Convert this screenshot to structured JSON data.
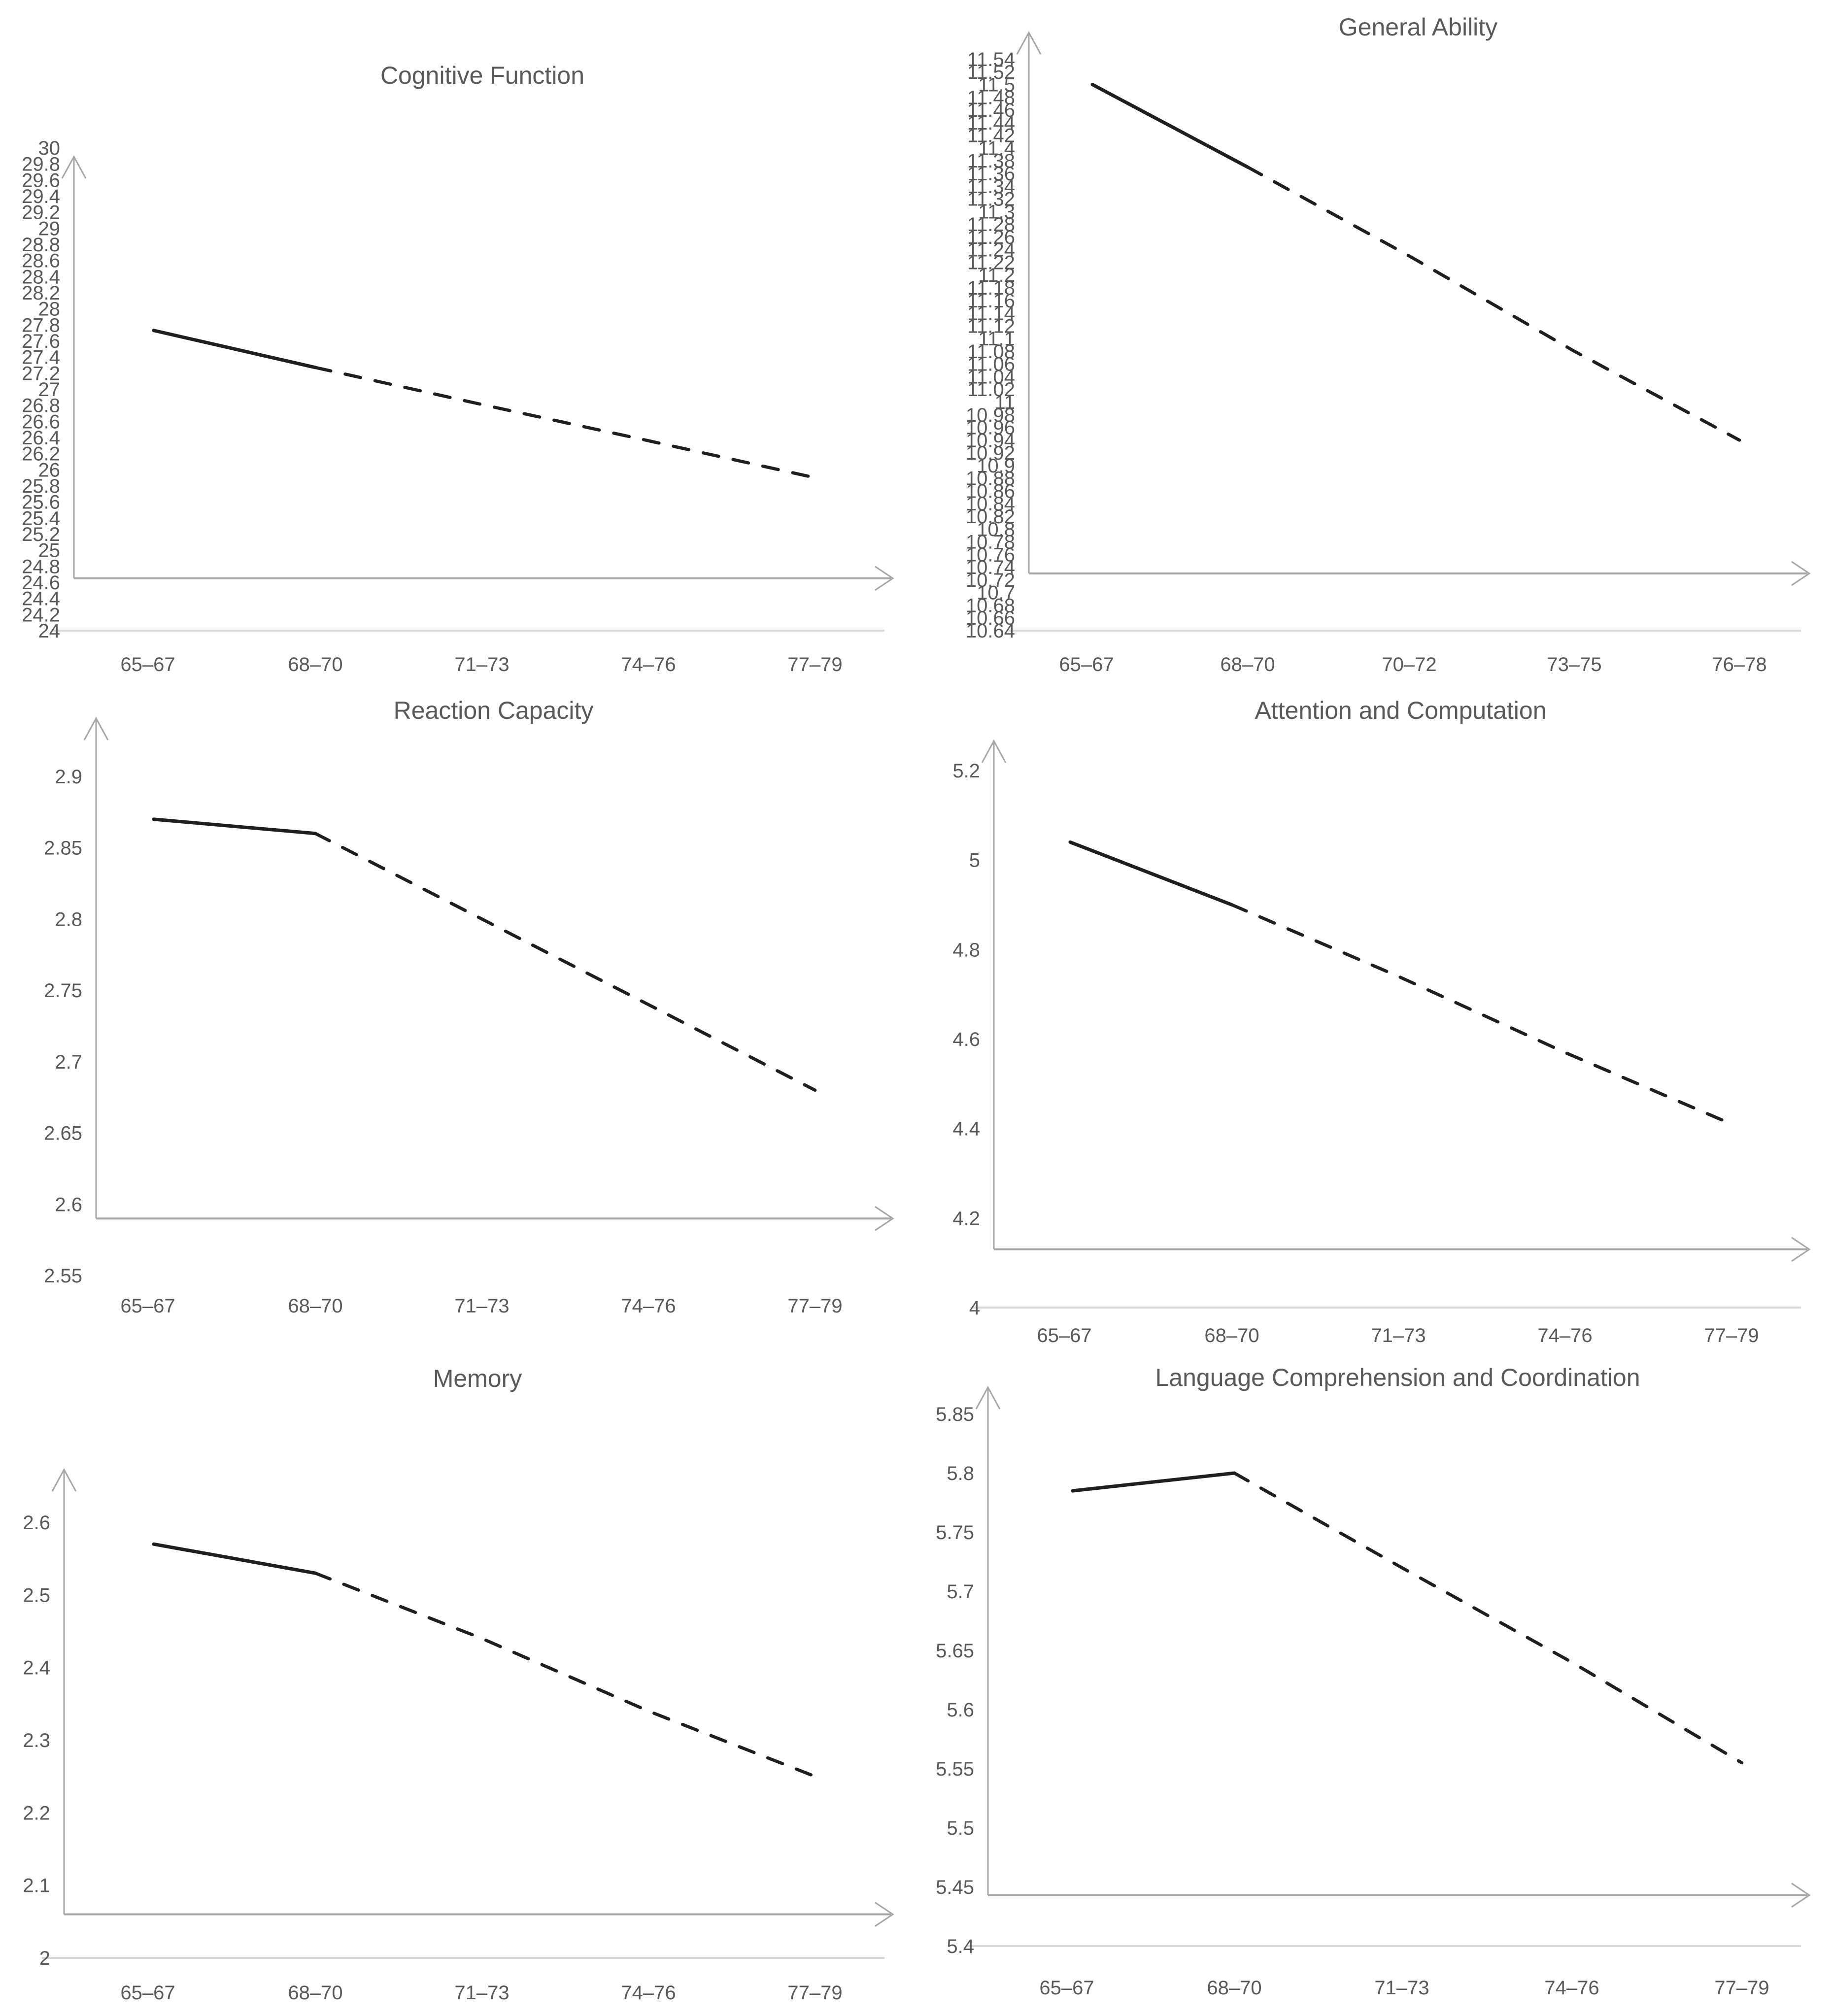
{
  "page": {
    "background": "#ffffff"
  },
  "colors": {
    "data_line": "#1f1f1f",
    "axis_line": "#a6a6a6",
    "label_text": "#595959",
    "faint_gridline": "#d9d9d9"
  },
  "chart_data": [
    {
      "type": "line",
      "title": "Cognitive Function",
      "categories": [
        "65–67",
        "68–70",
        "71–73",
        "74–76",
        "77–79"
      ],
      "values": [
        27.73,
        27.27,
        26.81,
        26.36,
        25.9
      ],
      "solid_until_index": 1,
      "dashed_after": true,
      "xlabel": "",
      "ylabel": "",
      "ylim": [
        24,
        30
      ],
      "y_max": 30,
      "y_min": 24,
      "axis_cross_value": 24.65,
      "baseline_gridline_value": 24,
      "grid": "off",
      "legend": "none",
      "y_ticks": [
        "30",
        "29.8",
        "29.6",
        "29.4",
        "29.2",
        "29",
        "28.8",
        "28.6",
        "28.4",
        "28.2",
        "28",
        "27.8",
        "27.6",
        "27.4",
        "27.2",
        "27",
        "26.8",
        "26.6",
        "26.4",
        "26.2",
        "26",
        "25.8",
        "25.6",
        "25.4",
        "25.2",
        "25",
        "24.8",
        "24.6",
        "24.4",
        "24.2",
        "24"
      ]
    },
    {
      "type": "line",
      "title": "General Ability",
      "categories": [
        "65–67",
        "68–70",
        "70–72",
        "73–75",
        "76–78"
      ],
      "values": [
        11.5,
        11.37,
        11.23,
        11.08,
        10.94
      ],
      "solid_until_index": 1,
      "dashed_after": true,
      "xlabel": "",
      "ylabel": "",
      "ylim": [
        10.64,
        11.54
      ],
      "y_max": 11.54,
      "y_min": 10.64,
      "axis_cross_value": 10.73,
      "baseline_gridline_value": 10.64,
      "grid": "off",
      "legend": "none",
      "y_ticks": [
        "11.54",
        "11.52",
        "11.5",
        "11.48",
        "11.46",
        "11.44",
        "11.42",
        "11.4",
        "11.38",
        "11.36",
        "11.34",
        "11.32",
        "11.3",
        "11.28",
        "11.26",
        "11.24",
        "11.22",
        "11.2",
        "11.18",
        "11.16",
        "11.14",
        "11.12",
        "11.1",
        "11.08",
        "11.06",
        "11.04",
        "11.02",
        "11",
        "10.98",
        "10.96",
        "10.94",
        "10.92",
        "10.9",
        "10.88",
        "10.86",
        "10.84",
        "10.82",
        "10.8",
        "10.78",
        "10.76",
        "10.74",
        "10.72",
        "10.7",
        "10.68",
        "10.66",
        "10.64"
      ]
    },
    {
      "type": "line",
      "title": "Reaction Capacity",
      "categories": [
        "65–67",
        "68–70",
        "71–73",
        "74–76",
        "77–79"
      ],
      "values": [
        2.87,
        2.86,
        2.8,
        2.74,
        2.68
      ],
      "solid_until_index": 1,
      "dashed_after": true,
      "xlabel": "",
      "ylabel": "",
      "ylim": [
        2.55,
        2.9
      ],
      "y_max": 2.9,
      "y_min": 2.55,
      "axis_cross_value": 2.59,
      "baseline_gridline_value": null,
      "grid": "off",
      "legend": "none",
      "y_ticks": [
        "2.9",
        "2.85",
        "2.8",
        "2.75",
        "2.7",
        "2.65",
        "2.6",
        "2.55"
      ]
    },
    {
      "type": "line",
      "title": "Attention and Computation",
      "categories": [
        "65–67",
        "68–70",
        "71–73",
        "74–76",
        "77–79"
      ],
      "values": [
        5.04,
        4.9,
        4.74,
        4.57,
        4.41
      ],
      "solid_until_index": 1,
      "dashed_after": true,
      "xlabel": "",
      "ylabel": "",
      "ylim": [
        4,
        5.2
      ],
      "y_max": 5.2,
      "y_min": 4,
      "axis_cross_value": 4.13,
      "baseline_gridline_value": 4,
      "grid": "off",
      "legend": "none",
      "y_ticks": [
        "5.2",
        "5",
        "4.8",
        "4.6",
        "4.4",
        "4.2",
        "4"
      ]
    },
    {
      "type": "line",
      "title": "Memory",
      "categories": [
        "65–67",
        "68–70",
        "71–73",
        "74–76",
        "77–79"
      ],
      "values": [
        2.57,
        2.53,
        2.44,
        2.34,
        2.25
      ],
      "solid_until_index": 1,
      "dashed_after": true,
      "xlabel": "",
      "ylabel": "",
      "ylim": [
        2,
        2.6
      ],
      "y_max": 2.6,
      "y_min": 2,
      "axis_cross_value": 2.06,
      "baseline_gridline_value": 2,
      "grid": "off",
      "legend": "none",
      "y_ticks": [
        "2.6",
        "2.5",
        "2.4",
        "2.3",
        "2.2",
        "2.1",
        "2"
      ]
    },
    {
      "type": "line",
      "title": "Language Comprehension and Coordination",
      "categories": [
        "65–67",
        "68–70",
        "71–73",
        "74–76",
        "77–79"
      ],
      "values": [
        5.785,
        5.8,
        5.72,
        5.64,
        5.555
      ],
      "solid_until_index": 1,
      "dashed_after": true,
      "xlabel": "",
      "ylabel": "",
      "ylim": [
        5.4,
        5.85
      ],
      "y_max": 5.85,
      "y_min": 5.4,
      "axis_cross_value": 5.443,
      "baseline_gridline_value": 5.4,
      "grid": "off",
      "legend": "none",
      "y_ticks": [
        "5.85",
        "5.8",
        "5.75",
        "5.7",
        "5.65",
        "5.6",
        "5.55",
        "5.5",
        "5.45",
        "5.4"
      ]
    }
  ]
}
